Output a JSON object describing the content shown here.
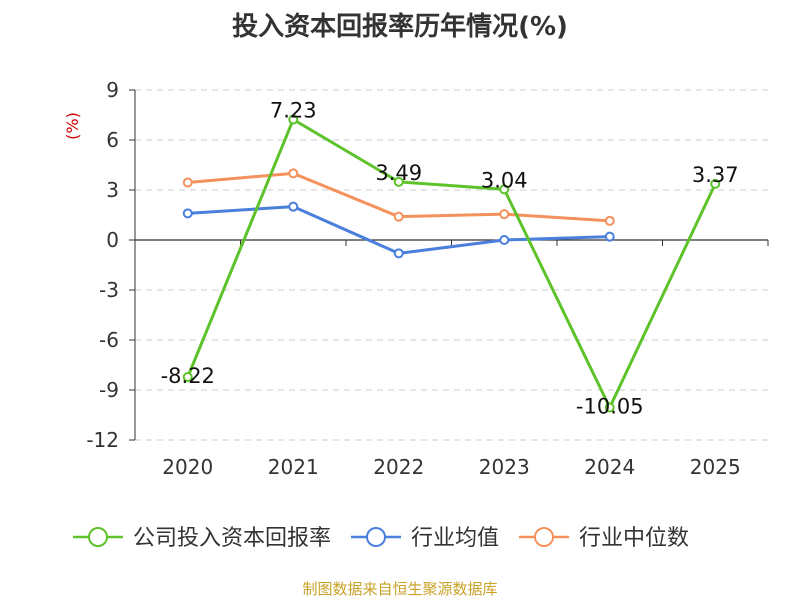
{
  "chart_data": {
    "type": "line",
    "title": "投入资本回报率历年情况(%)",
    "ylabel": "(%)",
    "xlabel": "",
    "categories": [
      "2020",
      "2021",
      "2022",
      "2023",
      "2024",
      "2025"
    ],
    "ylim": [
      -12,
      9
    ],
    "yticks": [
      9,
      6,
      3,
      0,
      -3,
      -6,
      -9,
      -12
    ],
    "grid": true,
    "legend_position": "bottom",
    "series": [
      {
        "name": "公司投入资本回报率",
        "color": "#5ec22b",
        "values": [
          -8.22,
          7.23,
          3.49,
          3.04,
          -10.05,
          3.37
        ],
        "labels": [
          "-8.22",
          "7.23",
          "3.49",
          "3.04",
          "-10.05",
          "3.37"
        ]
      },
      {
        "name": "行业均值",
        "color": "#4a7fdc",
        "values": [
          1.6,
          2.0,
          -0.8,
          0.0,
          0.2,
          null
        ]
      },
      {
        "name": "行业中位数",
        "color": "#f4915c",
        "values": [
          3.45,
          4.0,
          1.4,
          1.55,
          1.15,
          null
        ]
      }
    ]
  },
  "source": "制图数据来自恒生聚源数据库"
}
